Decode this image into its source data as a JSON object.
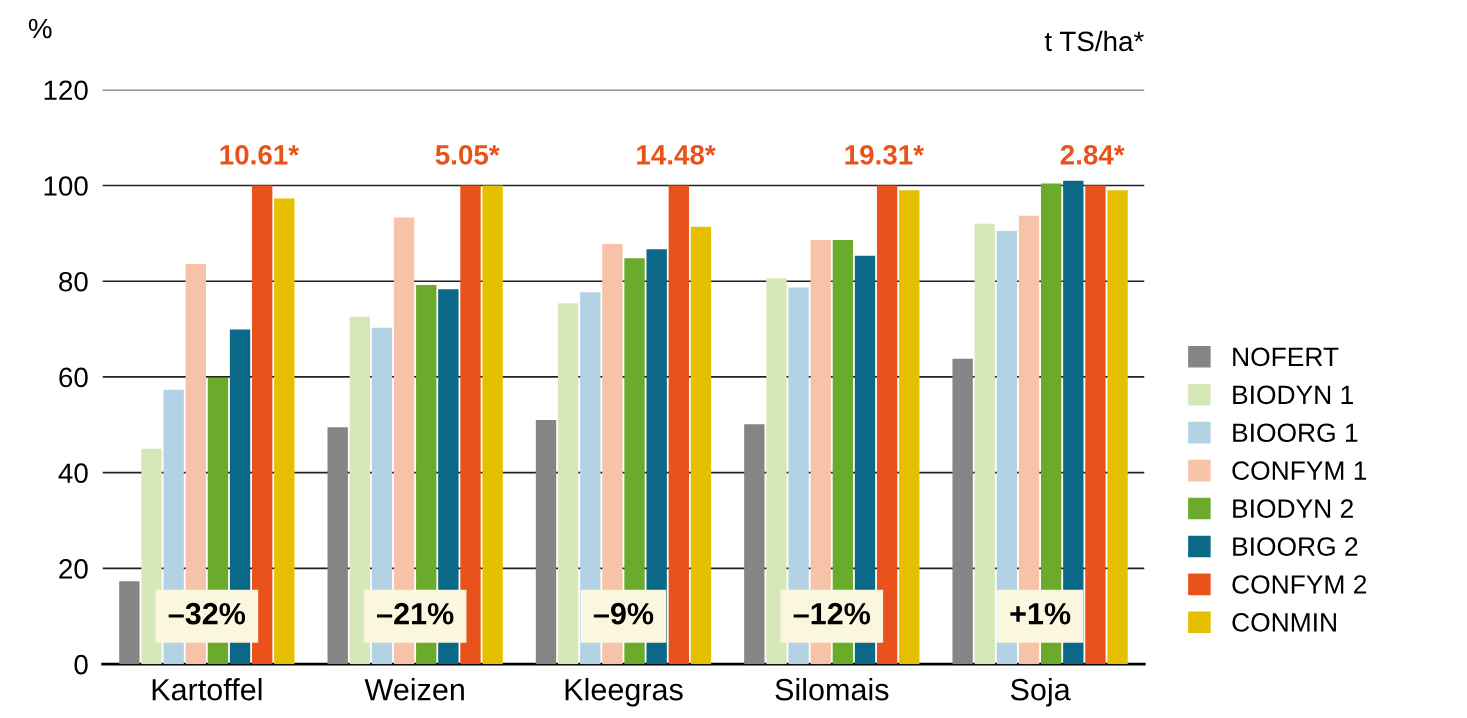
{
  "chart_data": {
    "type": "bar",
    "ylabel": "%",
    "categories": [
      "Kartoffel",
      "Weizen",
      "Kleegras",
      "Silomais",
      "Soja"
    ],
    "series": [
      {
        "name": "NOFERT",
        "color": "#858585",
        "values": [
          17.3,
          49.5,
          51,
          50.1,
          63.8
        ]
      },
      {
        "name": "BIODYN 1",
        "color": "#d6e8b8",
        "values": [
          45,
          72.6,
          75.4,
          80.6,
          92
        ]
      },
      {
        "name": "BIOORG 1",
        "color": "#b3d2e4",
        "values": [
          57.3,
          70.3,
          77.7,
          78.7,
          90.5
        ]
      },
      {
        "name": "CONFYM 1",
        "color": "#f7c3a8",
        "values": [
          83.6,
          93.3,
          87.8,
          88.6,
          93.7
        ]
      },
      {
        "name": "BIODYN 2",
        "color": "#6aab2b",
        "values": [
          59.8,
          79.2,
          84.8,
          88.6,
          100.4
        ]
      },
      {
        "name": "BIOORG 2",
        "color": "#0b6886",
        "values": [
          69.9,
          78.3,
          86.7,
          85.3,
          101
        ]
      },
      {
        "name": "CONFYM 2",
        "color": "#e9531b",
        "values": [
          100,
          100,
          100,
          100,
          100
        ]
      },
      {
        "name": "CONMIN",
        "color": "#e5c000",
        "values": [
          97.3,
          100,
          91.4,
          99,
          99
        ]
      }
    ],
    "ylim": [
      0,
      120
    ],
    "yticks": [
      0,
      20,
      40,
      60,
      80,
      100,
      120
    ],
    "grid": "y",
    "legend": "right",
    "annotations": [
      "t TS/ha*",
      "10.61*",
      "5.05*",
      "14.48*",
      "19.31*",
      "2.84*",
      {
        "text": "–32%",
        "x": "Kartoffel",
        "y": 10
      },
      {
        "text": "–21%",
        "x": "Weizen",
        "y": 10
      },
      {
        "text": "–9%",
        "x": "Kleegras",
        "y": 10
      },
      {
        "text": "–12%",
        "x": "Silomais",
        "y": 10
      },
      {
        "text": "+1%",
        "x": "Soja",
        "y": 10
      }
    ]
  }
}
